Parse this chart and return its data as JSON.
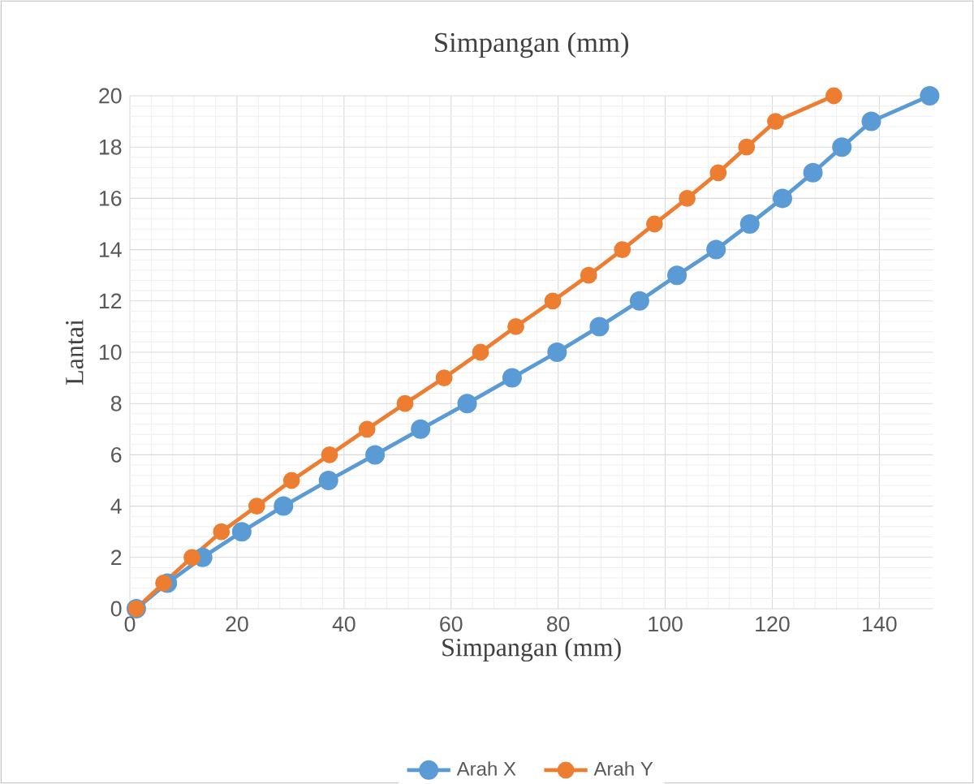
{
  "chart_data": {
    "type": "line",
    "title": "Simpangan (mm)",
    "xlabel": "Simpangan  (mm)",
    "ylabel": "Lantai",
    "xlim": [
      0,
      150
    ],
    "xticks": [
      0,
      20,
      40,
      60,
      80,
      100,
      120,
      140
    ],
    "ylim": [
      0,
      20
    ],
    "yticks": [
      0,
      2,
      4,
      6,
      8,
      10,
      12,
      14,
      16,
      18,
      20
    ],
    "grid": true,
    "legend": "bottom",
    "marker": "circle",
    "line_style": "solid",
    "series": [
      {
        "name": "Arah X",
        "color": "#5b9bd5",
        "x": [
          1.2,
          7.0,
          13.6,
          20.9,
          28.7,
          37.1,
          45.8,
          54.3,
          63.0,
          71.4,
          79.8,
          87.7,
          95.2,
          102.2,
          109.5,
          115.8,
          121.9,
          127.6,
          133.0,
          138.5,
          149.4
        ],
        "values": [
          0,
          1,
          2,
          3,
          4,
          5,
          6,
          7,
          8,
          9,
          10,
          11,
          12,
          13,
          14,
          15,
          16,
          17,
          18,
          19,
          20
        ]
      },
      {
        "name": "Arah Y",
        "color": "#ed7d31",
        "x": [
          1.2,
          6.3,
          11.6,
          17.1,
          23.7,
          30.2,
          37.3,
          44.3,
          51.4,
          58.7,
          65.5,
          72.1,
          79.0,
          85.7,
          92.0,
          98.0,
          104.1,
          109.9,
          115.2,
          120.6,
          131.5
        ],
        "values": [
          0,
          1,
          2,
          3,
          4,
          5,
          6,
          7,
          8,
          9,
          10,
          11,
          12,
          13,
          14,
          15,
          16,
          17,
          18,
          19,
          20
        ]
      }
    ]
  }
}
